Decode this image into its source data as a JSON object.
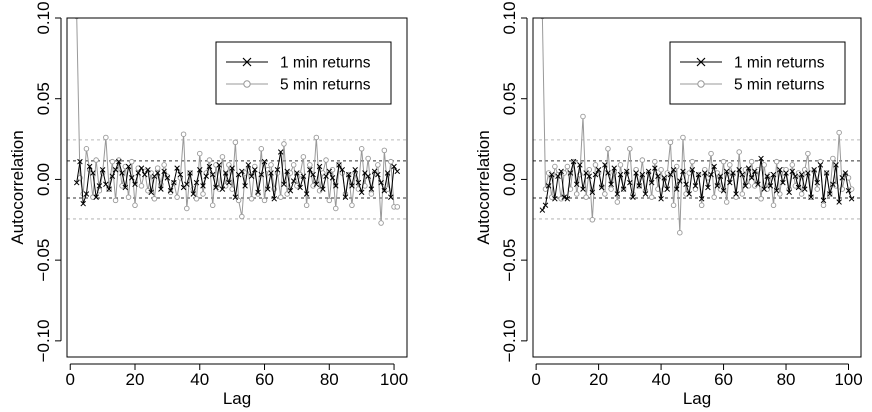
{
  "chart_data": [
    {
      "type": "line",
      "xlabel": "Lag",
      "ylabel": "Autocorrelation",
      "xlim": [
        -1,
        104
      ],
      "ylim": [
        -0.11,
        0.1
      ],
      "xticks": [
        0,
        20,
        40,
        60,
        80,
        100
      ],
      "xtick_labels": [
        "0",
        "20",
        "40",
        "60",
        "80",
        "100"
      ],
      "yticks": [
        -0.1,
        -0.05,
        0.0,
        0.05,
        0.1
      ],
      "ytick_labels": [
        "−0.10",
        "−0.05",
        "0.00",
        "0.05",
        "0.10"
      ],
      "legend_position": "top-right",
      "reference_lines": [
        {
          "y": 0.0115,
          "style": "dashed",
          "color": "#333333"
        },
        {
          "y": -0.0115,
          "style": "dashed",
          "color": "#333333"
        },
        {
          "y": 0.0245,
          "style": "dashed",
          "color": "#bbbbbb"
        },
        {
          "y": -0.0245,
          "style": "dashed",
          "color": "#bbbbbb"
        }
      ],
      "x": [
        2,
        3,
        4,
        5,
        6,
        7,
        8,
        9,
        10,
        11,
        12,
        13,
        14,
        15,
        16,
        17,
        18,
        19,
        20,
        21,
        22,
        23,
        24,
        25,
        26,
        27,
        28,
        29,
        30,
        31,
        32,
        33,
        34,
        35,
        36,
        37,
        38,
        39,
        40,
        41,
        42,
        43,
        44,
        45,
        46,
        47,
        48,
        49,
        50,
        51,
        52,
        53,
        54,
        55,
        56,
        57,
        58,
        59,
        60,
        61,
        62,
        63,
        64,
        65,
        66,
        67,
        68,
        69,
        70,
        71,
        72,
        73,
        74,
        75,
        76,
        77,
        78,
        79,
        80,
        81,
        82,
        83,
        84,
        85,
        86,
        87,
        88,
        89,
        90,
        91,
        92,
        93,
        94,
        95,
        96,
        97,
        98,
        99,
        100,
        101
      ],
      "series": [
        {
          "name": "1 min returns",
          "color": "#000000",
          "marker": "cross",
          "values": [
            -0.002,
            0.011,
            -0.015,
            -0.009,
            0.008,
            0.004,
            -0.011,
            -0.004,
            0.006,
            -0.003,
            -0.006,
            0.002,
            0.006,
            0.011,
            0.004,
            -0.005,
            0.008,
            0.001,
            -0.003,
            0.004,
            0.007,
            0.003,
            0.006,
            -0.008,
            0.002,
            0.004,
            -0.006,
            0.005,
            0.001,
            -0.007,
            -0.002,
            0.007,
            0.003,
            -0.005,
            -0.003,
            0.004,
            -0.009,
            -0.002,
            0.006,
            -0.004,
            0.002,
            0.008,
            0.003,
            -0.005,
            0.009,
            -0.006,
            0.004,
            -0.002,
            0.007,
            -0.011,
            0.003,
            0.005,
            -0.004,
            0.009,
            0.002,
            0.006,
            -0.008,
            0.003,
            0.011,
            -0.006,
            0.004,
            -0.012,
            0.006,
            0.017,
            -0.003,
            0.005,
            -0.007,
            -0.001,
            0.004,
            -0.005,
            0.002,
            -0.009,
            0.006,
            0.003,
            -0.003,
            0.008,
            -0.006,
            0.002,
            0.005,
            0.001,
            -0.004,
            0.009,
            0.006,
            -0.011,
            0.003,
            -0.004,
            0.006,
            -0.002,
            -0.008,
            0.004,
            0.002,
            -0.006,
            0.005,
            0.003,
            -0.002,
            -0.007,
            0.004,
            -0.011,
            0.008,
            0.005
          ]
        },
        {
          "name": "5 min returns",
          "color": "#999999",
          "marker": "circle",
          "values": [
            0.101,
            0.001,
            -0.009,
            0.019,
            0.006,
            -0.011,
            0.012,
            -0.007,
            0.004,
            0.026,
            -0.006,
            0.011,
            -0.013,
            0.012,
            -0.004,
            0.008,
            -0.011,
            0.011,
            -0.016,
            0.007,
            -0.004,
            0.005,
            -0.007,
            0.004,
            -0.012,
            0.007,
            -0.003,
            0.009,
            0.002,
            -0.008,
            -0.002,
            -0.011,
            0.001,
            0.028,
            -0.018,
            0.004,
            -0.006,
            -0.012,
            0.016,
            -0.009,
            0.004,
            0.012,
            -0.016,
            0.009,
            -0.006,
            0.014,
            -0.004,
            0.009,
            -0.006,
            0.023,
            -0.013,
            -0.023,
            0.004,
            0.006,
            -0.012,
            0.008,
            -0.009,
            0.019,
            -0.013,
            0.006,
            0.009,
            -0.006,
            0.004,
            -0.011,
            0.022,
            -0.009,
            0.004,
            0.009,
            -0.004,
            0.003,
            0.014,
            -0.016,
            0.009,
            -0.004,
            0.026,
            -0.007,
            0.004,
            0.012,
            -0.013,
            0.006,
            -0.018,
            0.009,
            0.004,
            -0.009,
            0.003,
            -0.016,
            0.004,
            -0.006,
            0.019,
            -0.004,
            0.013,
            -0.009,
            0.004,
            0.009,
            -0.027,
            0.018,
            -0.006,
            0.011,
            -0.017,
            -0.017
          ]
        }
      ]
    },
    {
      "type": "line",
      "xlabel": "Lag",
      "ylabel": "Autocorrelation",
      "xlim": [
        -1,
        104
      ],
      "ylim": [
        -0.11,
        0.1
      ],
      "xticks": [
        0,
        20,
        40,
        60,
        80,
        100
      ],
      "xtick_labels": [
        "0",
        "20",
        "40",
        "60",
        "80",
        "100"
      ],
      "yticks": [
        -0.1,
        -0.05,
        0.0,
        0.05,
        0.1
      ],
      "ytick_labels": [
        "−0.10",
        "−0.05",
        "0.00",
        "0.05",
        "0.10"
      ],
      "legend_position": "top-right",
      "reference_lines": [
        {
          "y": 0.0115,
          "style": "dashed",
          "color": "#333333"
        },
        {
          "y": -0.0115,
          "style": "dashed",
          "color": "#333333"
        },
        {
          "y": 0.0245,
          "style": "dashed",
          "color": "#bbbbbb"
        },
        {
          "y": -0.0245,
          "style": "dashed",
          "color": "#bbbbbb"
        }
      ],
      "x": [
        2,
        3,
        4,
        5,
        6,
        7,
        8,
        9,
        10,
        11,
        12,
        13,
        14,
        15,
        16,
        17,
        18,
        19,
        20,
        21,
        22,
        23,
        24,
        25,
        26,
        27,
        28,
        29,
        30,
        31,
        32,
        33,
        34,
        35,
        36,
        37,
        38,
        39,
        40,
        41,
        42,
        43,
        44,
        45,
        46,
        47,
        48,
        49,
        50,
        51,
        52,
        53,
        54,
        55,
        56,
        57,
        58,
        59,
        60,
        61,
        62,
        63,
        64,
        65,
        66,
        67,
        68,
        69,
        70,
        71,
        72,
        73,
        74,
        75,
        76,
        77,
        78,
        79,
        80,
        81,
        82,
        83,
        84,
        85,
        86,
        87,
        88,
        89,
        90,
        91,
        92,
        93,
        94,
        95,
        96,
        97,
        98,
        99,
        100,
        101
      ],
      "series": [
        {
          "name": "1 min returns",
          "color": "#000000",
          "marker": "cross",
          "values": [
            -0.019,
            -0.016,
            -0.004,
            0.003,
            -0.012,
            0.002,
            0.005,
            -0.011,
            -0.012,
            0.004,
            0.011,
            -0.003,
            0.009,
            -0.006,
            0.004,
            0.002,
            -0.008,
            0.003,
            0.006,
            -0.005,
            0.009,
            0.004,
            -0.003,
            0.007,
            -0.009,
            0.003,
            -0.006,
            0.005,
            -0.002,
            -0.011,
            0.004,
            -0.004,
            0.003,
            -0.009,
            0.005,
            -0.002,
            0.007,
            0.002,
            -0.012,
            0.001,
            -0.006,
            0.003,
            0.006,
            -0.006,
            -0.001,
            0.005,
            -0.003,
            -0.009,
            0.006,
            -0.004,
            0.003,
            -0.012,
            0.004,
            -0.005,
            0.003,
            0.008,
            -0.004,
            0.002,
            -0.007,
            0.005,
            -0.002,
            0.004,
            -0.009,
            0.006,
            0.003,
            -0.004,
            0.007,
            0.001,
            0.005,
            -0.003,
            0.013,
            -0.006,
            0.002,
            -0.004,
            0.003,
            -0.007,
            0.006,
            -0.002,
            0.004,
            -0.008,
            0.005,
            0.002,
            -0.005,
            0.003,
            -0.006,
            0.004,
            -0.011,
            0.006,
            -0.002,
            0.009,
            -0.013,
            0.004,
            -0.009,
            -0.003,
            0.009,
            -0.014,
            0.001,
            0.004,
            -0.007,
            -0.012
          ]
        },
        {
          "name": "5 min returns",
          "color": "#999999",
          "marker": "circle",
          "values": [
            0.101,
            -0.006,
            0.004,
            -0.011,
            0.008,
            0.003,
            -0.012,
            0.004,
            0.008,
            -0.006,
            0.011,
            -0.009,
            0.003,
            0.039,
            -0.011,
            0.006,
            -0.025,
            0.009,
            0.004,
            -0.004,
            -0.009,
            0.019,
            -0.006,
            0.004,
            -0.014,
            0.009,
            -0.006,
            0.004,
            0.019,
            -0.009,
            0.006,
            -0.004,
            0.012,
            -0.007,
            0.004,
            -0.011,
            0.011,
            -0.006,
            0.006,
            -0.006,
            0.004,
            0.023,
            -0.016,
            0.008,
            -0.033,
            0.026,
            -0.009,
            0.004,
            0.011,
            -0.006,
            0.003,
            -0.016,
            0.006,
            0.001,
            0.016,
            -0.011,
            0.004,
            -0.006,
            0.011,
            -0.014,
            0.009,
            0.003,
            -0.011,
            0.017,
            -0.009,
            0.006,
            -0.004,
            0.011,
            -0.004,
            0.006,
            -0.012,
            0.009,
            -0.006,
            0.003,
            -0.016,
            0.011,
            -0.009,
            0.006,
            0.006,
            -0.006,
            0.009,
            -0.004,
            0.004,
            -0.009,
            0.006,
            0.016,
            -0.011,
            0.005,
            -0.006,
            0.011,
            -0.016,
            0.004,
            -0.009,
            0.013,
            -0.004,
            0.029,
            -0.006,
            0.003,
            0.001,
            -0.006
          ]
        }
      ]
    }
  ]
}
